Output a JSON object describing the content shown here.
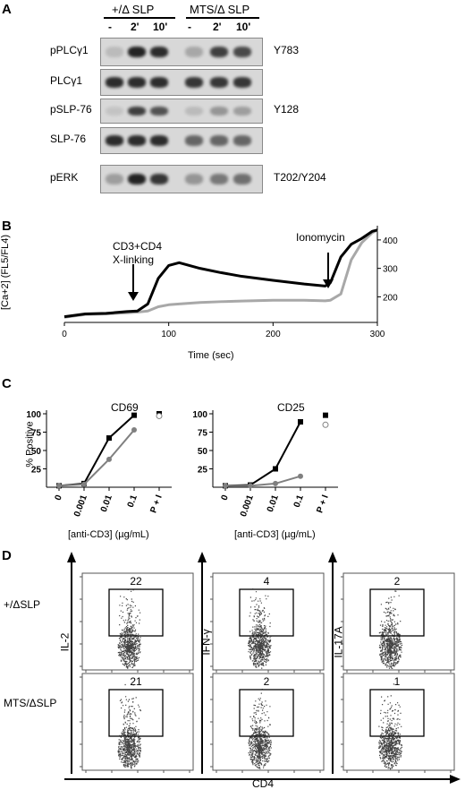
{
  "panelA": {
    "label": "A",
    "group1": "+/Δ SLP",
    "group2": "MTS/Δ SLP",
    "times": [
      "-",
      "2'",
      "10'",
      "-",
      "2'",
      "10'"
    ],
    "rows": [
      {
        "protein": "pPLCγ1",
        "site": "Y783",
        "bands": [
          0.15,
          0.95,
          0.9,
          0.25,
          0.8,
          0.75
        ]
      },
      {
        "protein": "PLCγ1",
        "site": "",
        "bands": [
          0.9,
          0.9,
          0.9,
          0.85,
          0.85,
          0.85
        ]
      },
      {
        "protein": "pSLP-76",
        "site": "Y128",
        "bands": [
          0.1,
          0.8,
          0.7,
          0.15,
          0.35,
          0.3
        ]
      },
      {
        "protein": "SLP-76",
        "site": "",
        "bands": [
          0.9,
          0.9,
          0.9,
          0.6,
          0.6,
          0.6
        ]
      },
      {
        "protein": "pERK",
        "site": "T202/Y204",
        "bands": [
          0.3,
          0.95,
          0.85,
          0.35,
          0.5,
          0.55
        ]
      }
    ]
  },
  "panelB": {
    "label": "B",
    "ylabel": "[Ca+2] (FL5/FL4)",
    "xlabel": "Time (sec)",
    "annot1_line1": "CD3+CD4",
    "annot1_line2": "X-linking",
    "annot2": "Ionomycin",
    "chart_data": {
      "type": "line",
      "xlim": [
        0,
        300
      ],
      "ylim": [
        110,
        450
      ],
      "x_ticks": [
        0,
        100,
        200,
        300
      ],
      "y_ticks": [
        200,
        300,
        400
      ],
      "series": [
        {
          "color": "#000000",
          "x": [
            0,
            20,
            40,
            60,
            70,
            80,
            90,
            100,
            110,
            130,
            150,
            170,
            200,
            230,
            250,
            255,
            265,
            275,
            285,
            295,
            300
          ],
          "y": [
            130,
            140,
            142,
            148,
            150,
            175,
            265,
            310,
            320,
            300,
            285,
            272,
            258,
            245,
            238,
            250,
            340,
            385,
            405,
            430,
            435
          ]
        },
        {
          "color": "#a8a8a8",
          "x": [
            0,
            20,
            40,
            60,
            70,
            80,
            90,
            100,
            110,
            130,
            150,
            170,
            200,
            230,
            250,
            255,
            265,
            275,
            285,
            295,
            300
          ],
          "y": [
            128,
            138,
            140,
            144,
            146,
            150,
            165,
            172,
            175,
            180,
            183,
            185,
            188,
            188,
            186,
            188,
            210,
            330,
            390,
            425,
            435
          ]
        }
      ]
    }
  },
  "panelC": {
    "label": "C",
    "ylabel": "% Positive",
    "xlabel": "[anti-CD3] (µg/mL)",
    "categories": [
      "0",
      "0.001",
      "0.01",
      "0.1",
      "P + I"
    ],
    "chart_data": [
      {
        "type": "line",
        "title": "CD69",
        "ylim": [
          0,
          100
        ],
        "y_ticks": [
          25,
          50,
          75,
          100
        ],
        "categories": [
          "0",
          "0.001",
          "0.01",
          "0.1"
        ],
        "series": [
          {
            "color": "#000000",
            "marker": "square",
            "values": [
              2,
              5,
              67,
              98
            ],
            "pi": 100
          },
          {
            "color": "#808080",
            "marker": "circle",
            "values": [
              2,
              4,
              38,
              78
            ],
            "pi": 97
          }
        ]
      },
      {
        "type": "line",
        "title": "CD25",
        "ylim": [
          0,
          100
        ],
        "y_ticks": [
          25,
          50,
          75,
          100
        ],
        "categories": [
          "0",
          "0.001",
          "0.01",
          "0.1"
        ],
        "series": [
          {
            "color": "#000000",
            "marker": "square",
            "values": [
              2,
              3,
              25,
              89
            ],
            "pi": 98
          },
          {
            "color": "#808080",
            "marker": "circle",
            "values": [
              2,
              2,
              5,
              15
            ],
            "pi": 85
          }
        ]
      }
    ]
  },
  "panelD": {
    "label": "D",
    "xaxis": "CD4",
    "row_labels": [
      "+/ΔSLP",
      "MTS/ΔSLP"
    ],
    "col_labels": [
      "IL-2",
      "IFN-γ",
      "IL-17A"
    ],
    "values": [
      [
        "22",
        "4",
        "2"
      ],
      [
        "21",
        "2",
        "1"
      ]
    ]
  }
}
